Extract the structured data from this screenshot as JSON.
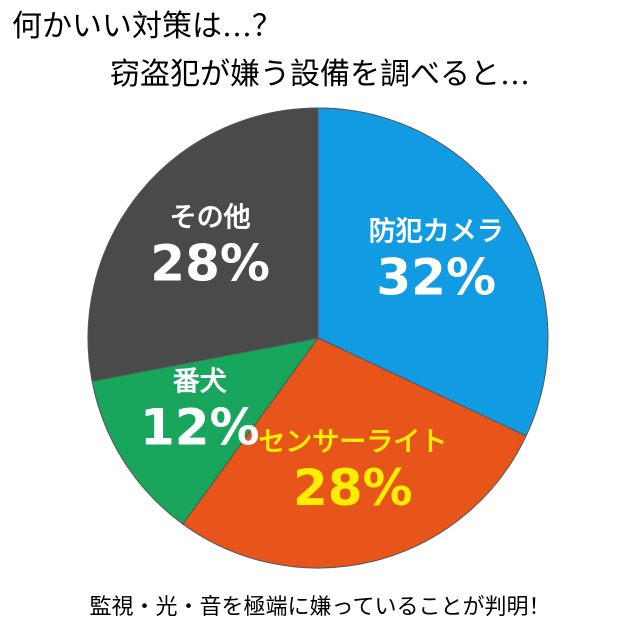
{
  "chart_data": {
    "type": "pie",
    "title": "何かいい対策は…？",
    "subtitle": "窃盗犯が嫌う設備を調べると…",
    "caption": "監視・光・音を極端に嫌っていることが判明！",
    "categories": [
      "防犯カメラ",
      "センサーライト",
      "番犬",
      "その他"
    ],
    "values": [
      32,
      28,
      12,
      28
    ],
    "value_labels": [
      "32%",
      "28%",
      "12%",
      "28%"
    ],
    "colors": [
      "#109be3",
      "#e8551a",
      "#17a65b",
      "#4a4a4a"
    ],
    "label_colors": [
      "#ffffff",
      "#ffee00",
      "#ffffff",
      "#ffffff"
    ]
  }
}
